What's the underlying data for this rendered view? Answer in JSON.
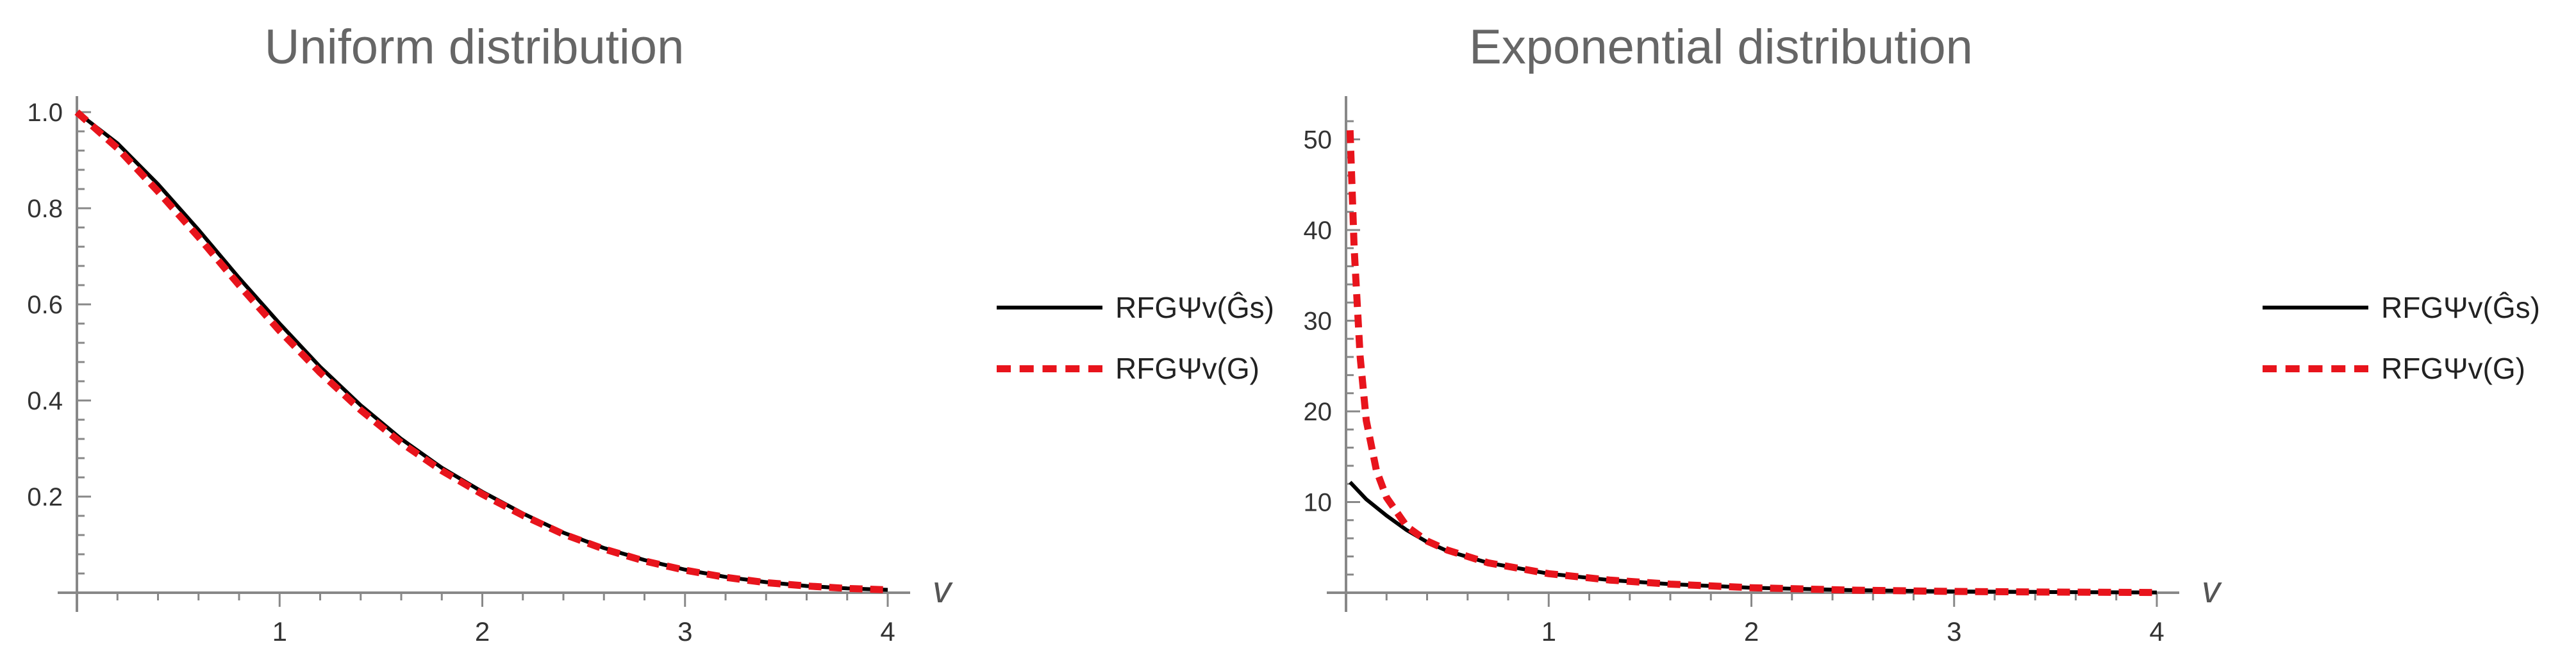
{
  "chart_data": [
    {
      "type": "line",
      "title": "Uniform distribution",
      "xlabel": "v",
      "ylabel": "",
      "xlim": [
        0,
        4
      ],
      "ylim": [
        0,
        1.0
      ],
      "x_ticks": [
        "1",
        "2",
        "3",
        "4"
      ],
      "y_ticks": [
        "0.2",
        "0.4",
        "0.6",
        "0.8",
        "1.0"
      ],
      "grid": false,
      "legend_position": "right",
      "series": [
        {
          "name": "RFGΨv(Ĝs)",
          "color": "#000000",
          "style": "solid",
          "x": [
            0,
            0.2,
            0.4,
            0.6,
            0.8,
            1.0,
            1.2,
            1.4,
            1.6,
            1.8,
            2.0,
            2.2,
            2.4,
            2.6,
            2.8,
            3.0,
            3.2,
            3.4,
            3.6,
            3.8,
            4.0
          ],
          "y": [
            1.0,
            0.935,
            0.85,
            0.755,
            0.655,
            0.56,
            0.47,
            0.39,
            0.32,
            0.26,
            0.21,
            0.165,
            0.125,
            0.093,
            0.068,
            0.048,
            0.033,
            0.022,
            0.014,
            0.009,
            0.006
          ]
        },
        {
          "name": "RFGΨv(G)",
          "color": "#e8141c",
          "style": "dashed",
          "x": [
            0,
            0.2,
            0.4,
            0.6,
            0.8,
            1.0,
            1.2,
            1.4,
            1.6,
            1.8,
            2.0,
            2.2,
            2.4,
            2.6,
            2.8,
            3.0,
            3.2,
            3.4,
            3.6,
            3.8,
            4.0
          ],
          "y": [
            1.0,
            0.925,
            0.835,
            0.74,
            0.64,
            0.545,
            0.458,
            0.38,
            0.312,
            0.254,
            0.205,
            0.161,
            0.122,
            0.091,
            0.066,
            0.047,
            0.032,
            0.021,
            0.014,
            0.009,
            0.006
          ]
        }
      ]
    },
    {
      "type": "line",
      "title": "Exponential distribution",
      "xlabel": "v",
      "ylabel": "",
      "xlim": [
        0,
        4
      ],
      "ylim": [
        0,
        53
      ],
      "x_ticks": [
        "1",
        "2",
        "3",
        "4"
      ],
      "y_ticks": [
        "10",
        "20",
        "30",
        "40",
        "50"
      ],
      "grid": false,
      "legend_position": "right",
      "series": [
        {
          "name": "RFGΨv(Ĝs)",
          "color": "#000000",
          "style": "solid",
          "x": [
            0.02,
            0.1,
            0.2,
            0.3,
            0.4,
            0.5,
            0.7,
            1.0,
            1.3,
            1.6,
            2.0,
            2.5,
            3.0,
            3.5,
            4.0
          ],
          "y": [
            12.2,
            10.3,
            8.5,
            6.9,
            5.6,
            4.6,
            3.3,
            2.1,
            1.4,
            0.95,
            0.55,
            0.28,
            0.14,
            0.07,
            0.03
          ]
        },
        {
          "name": "RFGΨv(G)",
          "color": "#e8141c",
          "style": "dashed",
          "x": [
            0.02,
            0.04,
            0.07,
            0.1,
            0.15,
            0.2,
            0.3,
            0.4,
            0.5,
            0.7,
            1.0,
            1.3,
            1.6,
            2.0,
            2.5,
            3.0,
            3.5,
            4.0
          ],
          "y": [
            51.0,
            38.0,
            26.0,
            19.0,
            13.5,
            10.5,
            7.3,
            5.7,
            4.7,
            3.3,
            2.1,
            1.4,
            0.95,
            0.55,
            0.28,
            0.14,
            0.07,
            0.03
          ]
        }
      ]
    }
  ]
}
